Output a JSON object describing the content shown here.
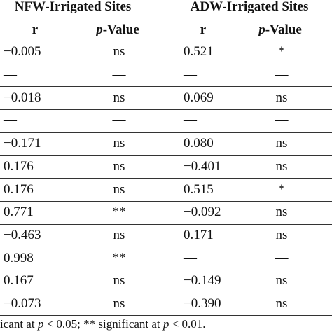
{
  "table": {
    "groups": [
      "NFW-Irrigated Sites",
      "ADW-Irrigated Sites"
    ],
    "columns": [
      {
        "text": "r"
      },
      {
        "italic": "p",
        "text": "-Value"
      },
      {
        "text": "r"
      },
      {
        "italic": "p",
        "text": "-Value"
      }
    ],
    "rows": [
      [
        "−0.005",
        "ns",
        "0.521",
        "*"
      ],
      [
        "—",
        "—",
        "—",
        "—"
      ],
      [
        "−0.018",
        "ns",
        "0.069",
        "ns"
      ],
      [
        "—",
        "—",
        "—",
        "—"
      ],
      [
        "−0.171",
        "ns",
        "0.080",
        "ns"
      ],
      [
        "0.176",
        "ns",
        "−0.401",
        "ns"
      ],
      [
        "0.176",
        "ns",
        "0.515",
        "*"
      ],
      [
        "0.771",
        "**",
        "−0.092",
        "ns"
      ],
      [
        "−0.463",
        "ns",
        "0.171",
        "ns"
      ],
      [
        "0.998",
        "**",
        "—",
        "—"
      ],
      [
        "0.167",
        "ns",
        "−0.149",
        "ns"
      ],
      [
        "−0.073",
        "ns",
        "−0.390",
        "ns"
      ]
    ],
    "footnote": [
      {
        "text": "icant at "
      },
      {
        "italic": "p"
      },
      {
        "text": " < 0.05; ** significant at "
      },
      {
        "italic": "p"
      },
      {
        "text": " < 0.01."
      }
    ]
  }
}
